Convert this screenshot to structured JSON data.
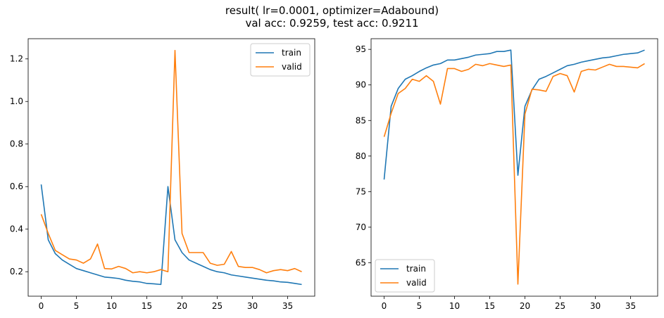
{
  "figure": {
    "title_line1": "result( lr=0.0001, optimizer=Adabound)",
    "title_line2": "val acc: 0.9259, test acc: 0.9211"
  },
  "colors": {
    "train": "#1f77b4",
    "valid": "#ff7f0e"
  },
  "chart_data": [
    {
      "type": "line",
      "title": "",
      "xlabel": "",
      "ylabel": "",
      "xlim": [
        -1.85,
        38.85
      ],
      "ylim": [
        0.085,
        1.295
      ],
      "xticks": [
        0,
        5,
        10,
        15,
        20,
        25,
        30,
        35
      ],
      "yticks": [
        0.2,
        0.4,
        0.6,
        0.8,
        1.0,
        1.2
      ],
      "ytick_labels": [
        "0.2",
        "0.4",
        "0.6",
        "0.8",
        "1.0",
        "1.2"
      ],
      "grid": false,
      "legend": "top-right",
      "x": [
        0,
        1,
        2,
        3,
        4,
        5,
        6,
        7,
        8,
        9,
        10,
        11,
        12,
        13,
        14,
        15,
        16,
        17,
        18,
        19,
        20,
        21,
        22,
        23,
        24,
        25,
        26,
        27,
        28,
        29,
        30,
        31,
        32,
        33,
        34,
        35,
        36,
        37
      ],
      "series": [
        {
          "name": "train",
          "values": [
            0.61,
            0.35,
            0.285,
            0.255,
            0.235,
            0.215,
            0.205,
            0.195,
            0.185,
            0.175,
            0.172,
            0.168,
            0.16,
            0.155,
            0.152,
            0.145,
            0.143,
            0.14,
            0.6,
            0.35,
            0.29,
            0.255,
            0.24,
            0.225,
            0.21,
            0.2,
            0.195,
            0.185,
            0.18,
            0.175,
            0.17,
            0.165,
            0.16,
            0.157,
            0.152,
            0.15,
            0.145,
            0.14
          ]
        },
        {
          "name": "valid",
          "values": [
            0.47,
            0.38,
            0.3,
            0.28,
            0.26,
            0.255,
            0.24,
            0.26,
            0.33,
            0.215,
            0.213,
            0.225,
            0.215,
            0.195,
            0.2,
            0.195,
            0.2,
            0.21,
            0.2,
            1.24,
            0.38,
            0.29,
            0.29,
            0.29,
            0.24,
            0.23,
            0.235,
            0.295,
            0.225,
            0.22,
            0.22,
            0.21,
            0.195,
            0.205,
            0.21,
            0.205,
            0.215,
            0.2
          ]
        }
      ]
    },
    {
      "type": "line",
      "title": "",
      "xlabel": "",
      "ylabel": "",
      "xlim": [
        -1.85,
        38.85
      ],
      "ylim": [
        60.3,
        96.5
      ],
      "xticks": [
        0,
        5,
        10,
        15,
        20,
        25,
        30,
        35
      ],
      "yticks": [
        65,
        70,
        75,
        80,
        85,
        90,
        95
      ],
      "ytick_labels": [
        "65",
        "70",
        "75",
        "80",
        "85",
        "90",
        "95"
      ],
      "grid": false,
      "legend": "bottom-left",
      "x": [
        0,
        1,
        2,
        3,
        4,
        5,
        6,
        7,
        8,
        9,
        10,
        11,
        12,
        13,
        14,
        15,
        16,
        17,
        18,
        19,
        20,
        21,
        22,
        23,
        24,
        25,
        26,
        27,
        28,
        29,
        30,
        31,
        32,
        33,
        34,
        35,
        36,
        37
      ],
      "series": [
        {
          "name": "train",
          "values": [
            76.7,
            87.0,
            89.5,
            90.8,
            91.3,
            91.9,
            92.4,
            92.8,
            93.0,
            93.5,
            93.5,
            93.7,
            93.9,
            94.2,
            94.3,
            94.4,
            94.7,
            94.7,
            94.9,
            77.3,
            87.0,
            89.3,
            90.8,
            91.2,
            91.7,
            92.2,
            92.7,
            92.9,
            93.2,
            93.4,
            93.6,
            93.8,
            93.9,
            94.1,
            94.3,
            94.4,
            94.5,
            94.9
          ]
        },
        {
          "name": "valid",
          "values": [
            82.7,
            86.0,
            88.8,
            89.5,
            90.8,
            90.5,
            91.3,
            90.5,
            87.3,
            92.3,
            92.3,
            91.9,
            92.2,
            92.9,
            92.7,
            93.0,
            92.8,
            92.6,
            92.8,
            62.0,
            85.9,
            89.4,
            89.3,
            89.1,
            91.2,
            91.6,
            91.3,
            89.0,
            91.9,
            92.2,
            92.1,
            92.5,
            92.9,
            92.6,
            92.6,
            92.5,
            92.4,
            93.0
          ]
        }
      ]
    }
  ]
}
